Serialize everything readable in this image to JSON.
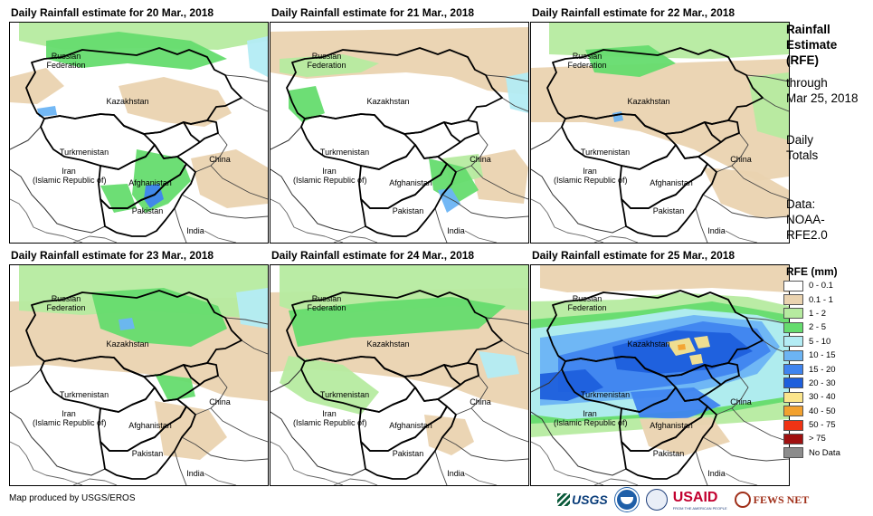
{
  "panels": [
    {
      "title": "Daily Rainfall estimate for 20 Mar., 2018",
      "scenario": "d20"
    },
    {
      "title": "Daily Rainfall estimate for 21 Mar., 2018",
      "scenario": "d21"
    },
    {
      "title": "Daily Rainfall estimate for 22 Mar., 2018",
      "scenario": "d22"
    },
    {
      "title": "Daily Rainfall estimate for 23 Mar., 2018",
      "scenario": "d23"
    },
    {
      "title": "Daily Rainfall estimate for 24 Mar., 2018",
      "scenario": "d24"
    },
    {
      "title": "Daily Rainfall estimate for 25 Mar., 2018",
      "scenario": "d25"
    }
  ],
  "map_labels": {
    "russia_1": "Russian",
    "russia_2": "Federation",
    "kazakhstan": "Kazakhstan",
    "turkmenistan": "Turkmenistan",
    "china": "China",
    "iran_1": "Iran",
    "iran_2": "(Islamic Republic of)",
    "afghanistan": "Afghanistan",
    "pakistan": "Pakistan",
    "india": "India"
  },
  "side_text": {
    "line1": "Rainfall",
    "line2": "Estimate",
    "line3": "(RFE)",
    "line4": "through",
    "line5": "Mar 25, 2018",
    "line6": "Daily",
    "line7": "Totals",
    "line8": "Data:",
    "line9": "NOAA-",
    "line10": "RFE2.0"
  },
  "legend": {
    "title": "RFE (mm)",
    "classes": [
      {
        "label": "0 - 0.1",
        "color": "#ffffff"
      },
      {
        "label": "0.1 - 1",
        "color": "#ead3b0"
      },
      {
        "label": "1 - 2",
        "color": "#b6eba0"
      },
      {
        "label": "2 - 5",
        "color": "#65dc6e"
      },
      {
        "label": "5 - 10",
        "color": "#b3ecf4"
      },
      {
        "label": "10 - 15",
        "color": "#6cb4f4"
      },
      {
        "label": "15 - 20",
        "color": "#3f84ef"
      },
      {
        "label": "20 - 30",
        "color": "#1e5fdc"
      },
      {
        "label": "30 - 40",
        "color": "#fbe58c"
      },
      {
        "label": "40 - 50",
        "color": "#f2a12f"
      },
      {
        "label": "50 - 75",
        "color": "#ef3314"
      },
      {
        "label": "> 75",
        "color": "#a01010"
      },
      {
        "label": "No Data",
        "color": "#8c8c8c"
      }
    ]
  },
  "footer": {
    "credit": "Map produced by USGS/EROS"
  },
  "logos": {
    "usgs": "USGS",
    "usaid": "USAID",
    "usaid_tagline": "FROM THE AMERICAN PEOPLE",
    "fews": "FEWS NET"
  }
}
